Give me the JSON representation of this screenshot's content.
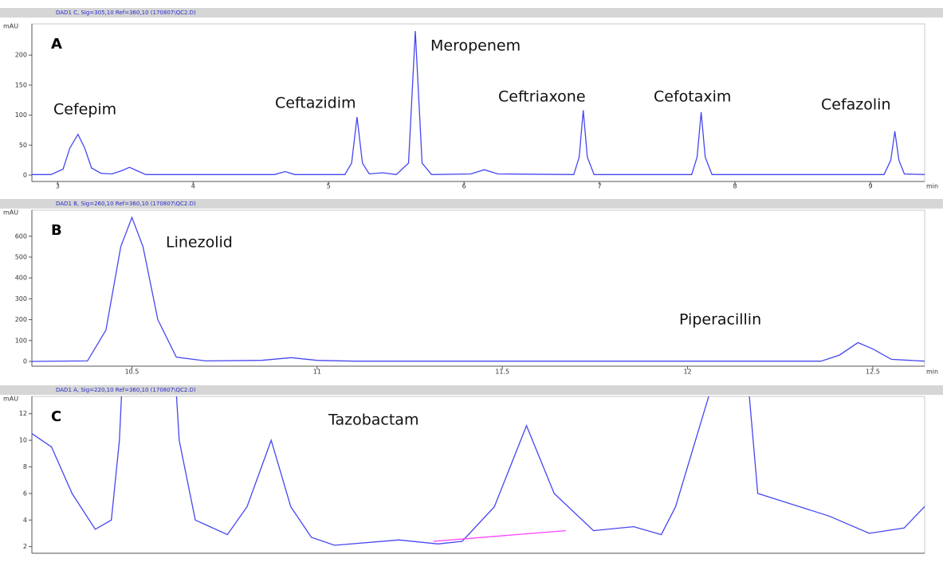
{
  "chart_data": [
    {
      "type": "line",
      "header": "DAD1 C, Sig=305,10 Ref=360,10 (170807\\QC2.D)",
      "panel_label": "A",
      "ylabel": "mAU",
      "xlabel": "min",
      "annotations": [
        "Cefepim",
        "Ceftazidim",
        "Meropenem",
        "Ceftriaxone",
        "Cefotaxim",
        "Cefazolin"
      ],
      "x": [
        2.81,
        2.95,
        3.04,
        3.09,
        3.15,
        3.2,
        3.25,
        3.32,
        3.4,
        3.48,
        3.53,
        3.58,
        3.65,
        4.6,
        4.68,
        4.75,
        5.12,
        5.17,
        5.21,
        5.25,
        5.3,
        5.4,
        5.5,
        5.59,
        5.64,
        5.69,
        5.76,
        6.05,
        6.15,
        6.25,
        6.81,
        6.85,
        6.88,
        6.91,
        6.96,
        7.68,
        7.72,
        7.75,
        7.78,
        7.83,
        9.1,
        9.15,
        9.18,
        9.21,
        9.25,
        9.4
      ],
      "series": [
        {
          "color": "#4646f0",
          "values": [
            1,
            1,
            10,
            45,
            68,
            45,
            12,
            3,
            2,
            8,
            13,
            8,
            1,
            1,
            6,
            1,
            1,
            20,
            97,
            20,
            2,
            4,
            1,
            20,
            240,
            20,
            1,
            2,
            9,
            2,
            1,
            30,
            108,
            30,
            1,
            1,
            30,
            105,
            30,
            1,
            1,
            25,
            73,
            25,
            2,
            1
          ]
        }
      ],
      "xlim": [
        2.81,
        9.4
      ],
      "ylim": [
        -10.6,
        252
      ],
      "xticks": [
        3,
        4,
        5,
        6,
        7,
        8,
        9
      ],
      "yticks": [
        0,
        50,
        100,
        150,
        200
      ]
    },
    {
      "type": "line",
      "header": "DAD1 B, Sig=260,10 Ref=360,10 (170807\\QC2.D)",
      "panel_label": "B",
      "ylabel": "mAU",
      "xlabel": "min",
      "annotations": [
        "Linezolid",
        "Piperacillin"
      ],
      "x": [
        10.23,
        10.38,
        10.43,
        10.47,
        10.5,
        10.53,
        10.57,
        10.62,
        10.7,
        10.85,
        10.93,
        11.0,
        11.1,
        12.36,
        12.41,
        12.46,
        12.5,
        12.55,
        12.64
      ],
      "series": [
        {
          "color": "#4646f0",
          "values": [
            0,
            2,
            150,
            550,
            690,
            550,
            200,
            20,
            2,
            5,
            18,
            5,
            1,
            1,
            30,
            90,
            60,
            10,
            1
          ]
        }
      ],
      "xlim": [
        10.23,
        12.64
      ],
      "ylim": [
        -23,
        725
      ],
      "xticks": [
        10.5,
        11,
        11.5,
        12,
        12.5
      ],
      "yticks": [
        0,
        100,
        200,
        300,
        400,
        500,
        600
      ]
    },
    {
      "type": "line",
      "header": "DAD1 A, Sig=220,10 Ref=360,10 (170807\\QC2.D)",
      "panel_label": "C",
      "ylabel": "mAU",
      "annotations": [
        "Tazobactam"
      ],
      "x": [
        0,
        2.2,
        4.5,
        7.1,
        8.9,
        9.8,
        10.5,
        15.6,
        16.5,
        18.3,
        21.9,
        24.1,
        26.8,
        29,
        31.3,
        33.9,
        41.1,
        45.5,
        48.2,
        51.8,
        55.4,
        58.5,
        62.9,
        67.4,
        70.5,
        72.1,
        78.8,
        79.5,
        81.3,
        89.3,
        93.8,
        97.7,
        100.4,
        102.2
      ],
      "series": [
        {
          "color": "#4646f0",
          "values": [
            10.5,
            9.5,
            6,
            3.3,
            4,
            10,
            20,
            20,
            10,
            4,
            2.9,
            5,
            10,
            5,
            2.7,
            2.1,
            2.5,
            2.2,
            2.4,
            5,
            11.1,
            6,
            3.2,
            3.5,
            2.9,
            5,
            20,
            20,
            6,
            4.3,
            3,
            3.4,
            5.3,
            5
          ]
        },
        {
          "color": "#ff40ff",
          "x": [
            45,
            59.8
          ],
          "values": [
            2.4,
            3.2
          ]
        }
      ],
      "xlim": [
        0,
        100
      ],
      "ylim": [
        1.5,
        13.3
      ],
      "yticks": [
        2,
        4,
        6,
        8,
        10,
        12
      ]
    }
  ]
}
